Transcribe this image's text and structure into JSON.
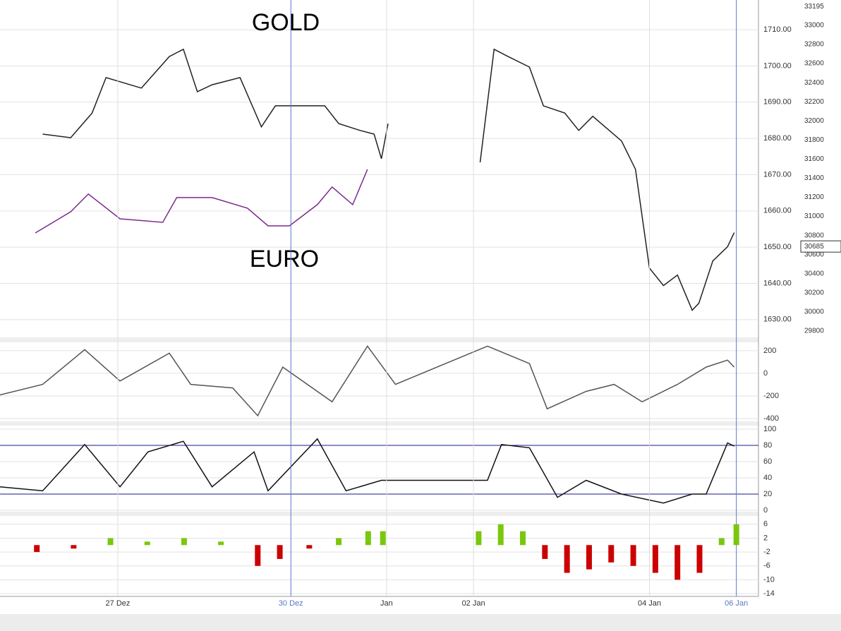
{
  "chart_data": [
    {
      "type": "line",
      "annotations": [
        "GOLD",
        "EURO"
      ],
      "xlim": [
        0,
        103
      ],
      "ylim": [
        1625.1,
        1718.2
      ],
      "yticks": [
        {
          "value": 1630,
          "label": "1630.00"
        },
        {
          "value": 1640,
          "label": "1640.00"
        },
        {
          "value": 1650,
          "label": "1650.00"
        },
        {
          "value": 1660,
          "label": "1660.00"
        },
        {
          "value": 1670,
          "label": "1670.00"
        },
        {
          "value": 1680,
          "label": "1680.00"
        },
        {
          "value": 1690,
          "label": "1690.00"
        },
        {
          "value": 1700,
          "label": "1700.00"
        },
        {
          "value": 1710,
          "label": "1710.00"
        }
      ],
      "y2lim": [
        29733,
        33266
      ],
      "y2ticks": [
        29800,
        30000,
        30200,
        30400,
        30600,
        30800,
        31000,
        31200,
        31400,
        31600,
        31800,
        32000,
        32200,
        32400,
        32600,
        32800,
        33000,
        33195
      ],
      "current_marker": 30685,
      "grid": true,
      "series": [
        {
          "color": "#222222",
          "x": [
            5.8,
            9.6,
            12.5,
            14.4,
            19.2,
            23.0,
            24.9,
            26.8,
            28.8,
            32.6,
            35.5,
            37.4,
            41.2,
            44.1,
            46.0,
            48.9,
            50.8,
            51.8,
            52.7,
            58,
            65.2,
            67.1,
            69.0,
            71.9,
            73.8,
            76.7,
            78.6,
            80.5,
            84.4,
            86.3,
            88.2,
            90.1,
            92.0,
            94.0,
            94.9,
            96.8,
            98.8,
            99.7
          ],
          "values": [
            1681.2,
            1680.2,
            1687.0,
            1696.8,
            1693.9,
            1702.6,
            1704.6,
            1692.9,
            1694.8,
            1696.8,
            1683.2,
            1689.0,
            1689.0,
            1689.0,
            1684.1,
            1682.2,
            1681.2,
            1674.4,
            1684.1,
            null,
            1673.4,
            1704.6,
            1702.6,
            1699.7,
            1689.0,
            1687.0,
            1682.2,
            1686.1,
            1679.3,
            1671.5,
            1644.2,
            1639.4,
            1642.3,
            1632.6,
            1634.5,
            1646.2,
            1650.1,
            1654.0
          ]
        },
        {
          "color": "#7b2a8c",
          "axis": "y2",
          "x": [
            4.8,
            9.6,
            12.0,
            16.3,
            22.1,
            24.0,
            28.8,
            33.6,
            36.4,
            39.3,
            43.1,
            45.1,
            47.9,
            49.9
          ],
          "values": [
            30827,
            31049,
            31234,
            30975,
            30938,
            31197,
            31197,
            31086,
            30901,
            30901,
            31123,
            31308,
            31123,
            31492
          ]
        }
      ]
    },
    {
      "type": "line",
      "xlim": [
        0,
        103
      ],
      "ylim": [
        -425,
        274
      ],
      "yticks": [
        200,
        0,
        -200,
        -400
      ],
      "grid": true,
      "series": [
        {
          "color": "#555555",
          "x": [
            0,
            5.8,
            11.5,
            16.3,
            23.0,
            25.9,
            31.6,
            35.0,
            38.4,
            45.1,
            49.9,
            53.7,
            66.2,
            71.9,
            74.3,
            79.6,
            83.4,
            87.2,
            92.0,
            95.9,
            98.8,
            99.7
          ],
          "values": [
            -191,
            -98,
            209,
            -68,
            178,
            -98,
            -129,
            -375,
            55,
            -252,
            240,
            -98,
            240,
            86,
            -314,
            -160,
            -98,
            -252,
            -98,
            55,
            117,
            55
          ]
        }
      ]
    },
    {
      "type": "line",
      "xlim": [
        0,
        103
      ],
      "ylim": [
        -1.7,
        104.3
      ],
      "yticks": [
        100,
        80,
        60,
        40,
        20,
        0
      ],
      "levels": [
        80,
        20
      ],
      "level_color": "#1a1a8c",
      "grid": true,
      "series": [
        {
          "color": "#111111",
          "x": [
            0,
            5.8,
            11.5,
            16.3,
            20.1,
            24.9,
            28.8,
            34.5,
            36.4,
            43.1,
            47.0,
            51.8,
            66.2,
            68.1,
            71.9,
            75.7,
            79.6,
            84.4,
            90.1,
            94.0,
            95.9,
            98.8,
            99.7
          ],
          "values": [
            29,
            24,
            81,
            29,
            72,
            85,
            29,
            72,
            24,
            88,
            24,
            37,
            37,
            81,
            77,
            16,
            37,
            20,
            9,
            20,
            20,
            83,
            79
          ]
        }
      ]
    },
    {
      "type": "bar",
      "xlim": [
        0,
        103
      ],
      "ylim": [
        -14.8,
        8.4
      ],
      "yticks": [
        6,
        2,
        -2,
        -6,
        -10,
        -14
      ],
      "grid": true,
      "pos_color": "#7ac70c",
      "neg_color": "#cc0000",
      "x": [
        5,
        10,
        15,
        20,
        25,
        30,
        35,
        38,
        42,
        46,
        50,
        52,
        65,
        68,
        71,
        74,
        77,
        80,
        83,
        86,
        89,
        92,
        95,
        98,
        100
      ],
      "values": [
        -2,
        -1,
        2,
        1,
        2,
        1,
        -6,
        -4,
        -1,
        2,
        4,
        4,
        4,
        6,
        4,
        -4,
        -8,
        -7,
        -5,
        -6,
        -8,
        -10,
        -8,
        2,
        6
      ],
      "xticks": [
        {
          "value": 16,
          "label": "27 Dez"
        },
        {
          "value": 39.5,
          "label": "30 Dez",
          "color": "#5a78c8"
        },
        {
          "value": 52.5,
          "label": "Jan"
        },
        {
          "value": 64.3,
          "label": "02 Jan"
        },
        {
          "value": 88.2,
          "label": "04 Jan"
        },
        {
          "value": 100,
          "label": "06 Jan",
          "color": "#5a78c8"
        }
      ]
    }
  ]
}
